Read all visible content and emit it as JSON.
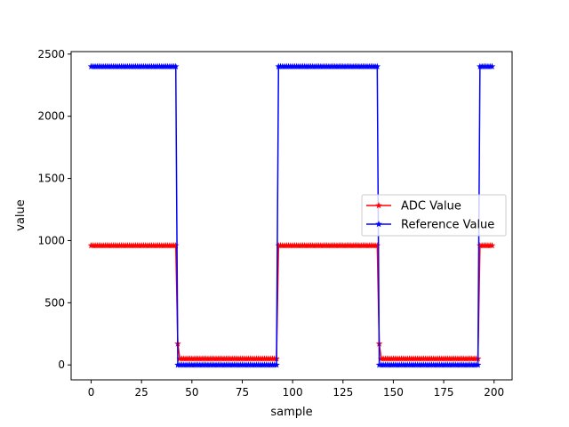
{
  "chart_data": {
    "type": "line",
    "title": "",
    "xlabel": "sample",
    "ylabel": "value",
    "xlim": [
      -9.95,
      208.95
    ],
    "ylim": [
      -120,
      2520
    ],
    "xticks": [
      0,
      25,
      50,
      75,
      100,
      125,
      150,
      175,
      200
    ],
    "yticks": [
      0,
      500,
      1000,
      1500,
      2000,
      2500
    ],
    "grid": false,
    "legend": "center-right",
    "pattern": {
      "n_samples": 200,
      "period": 100,
      "high_until": 43,
      "transition_index": 43,
      "return_index": 93
    },
    "series": [
      {
        "name": "ADC Value",
        "color": "#ff0000",
        "marker": "star",
        "high": 960,
        "low": 50,
        "transition": 170
      },
      {
        "name": "Reference Value",
        "color": "#0000ff",
        "marker": "star",
        "high": 2400,
        "low": 0,
        "transition": 0
      }
    ]
  }
}
